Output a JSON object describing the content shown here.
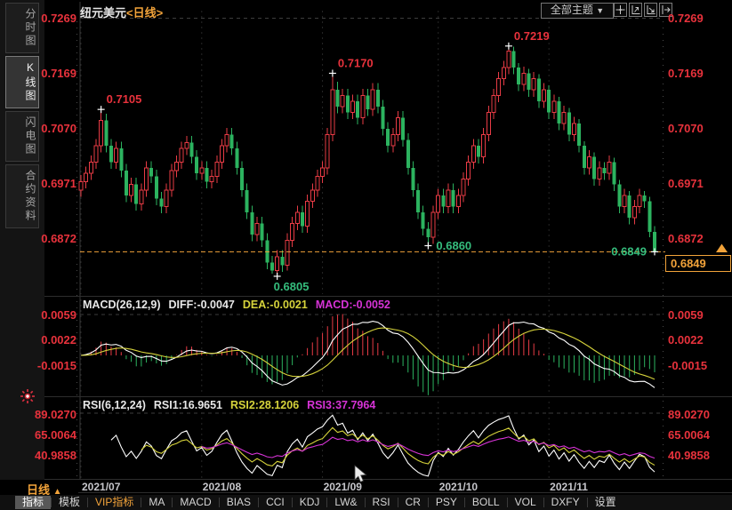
{
  "header": {
    "title": "纽元美元",
    "period_tag": "<日线>",
    "theme_label": "全部主题",
    "theme_arrow": "▼"
  },
  "sidebar": {
    "tabs": [
      "分时图",
      "K线图",
      "闪电图",
      "合约资料"
    ],
    "selected_index": 1
  },
  "toolbar_icons": [
    "pan-tool-icon",
    "y-axis-scale-icon",
    "x-axis-scale-icon",
    "pop-out-icon"
  ],
  "price_box": {
    "value": "0.6849"
  },
  "period_selector": {
    "label": "日线",
    "arrow": "▲"
  },
  "bottom_toolbar": {
    "items": [
      "指标",
      "模板",
      "VIP指标",
      "MA",
      "MACD",
      "BIAS",
      "CCI",
      "KDJ",
      "LW&",
      "RSI",
      "CR",
      "PSY",
      "BOLL",
      "VOL",
      "DXFY",
      "设置"
    ],
    "selected_index": 0,
    "vip_label": "VIP指标"
  },
  "indicators": {
    "macd": {
      "title": "MACD(26,12,9)",
      "diff": "DIFF:-0.0047",
      "dea": "DEA:-0.0021",
      "macd": "MACD:-0.0052",
      "axis_labels": [
        "0.0059",
        "0.0022",
        "-0.0015"
      ],
      "params": {
        "slow": 26,
        "fast": 12,
        "signal": 9
      }
    },
    "rsi": {
      "title": "RSI(6,12,24)",
      "r1": "RSI1:16.9651",
      "r2": "RSI2:28.1206",
      "r3": "RSI3:37.7964",
      "axis_labels": [
        "89.0270",
        "65.0064",
        "40.9858"
      ],
      "periods": [
        6,
        12,
        24
      ]
    }
  },
  "colors": {
    "up": "#e83b45",
    "down": "#2cb35f",
    "axis_label": "#e8323c",
    "orange": "#f2a33a",
    "dif_line": "#ffffff",
    "dea_line": "#d6d33b",
    "magenta": "#d633d6",
    "low_text": "#35bd7d",
    "grid": "#262626",
    "dash_grid": "#3d3d3d",
    "divider": "#2d2d2d",
    "border": "#383838"
  },
  "chart_data": {
    "type": "candlestick",
    "title": "纽元美元<日线>",
    "y_axis_labels": [
      "0.7269",
      "0.7169",
      "0.7070",
      "0.6971",
      "0.6872"
    ],
    "y_axis_values": [
      0.7269,
      0.7169,
      0.707,
      0.6971,
      0.6872
    ],
    "current_price": 0.6849,
    "months": [
      {
        "label": "2021/07",
        "index": 0
      },
      {
        "label": "2021/08",
        "index": 24
      },
      {
        "label": "2021/09",
        "index": 48
      },
      {
        "label": "2021/10",
        "index": 71
      },
      {
        "label": "2021/11",
        "index": 93
      }
    ],
    "markers": [
      {
        "index": 4,
        "price": 0.7105,
        "label": "0.7105",
        "type": "high",
        "labelPos": "above"
      },
      {
        "index": 50,
        "price": 0.717,
        "label": "0.7170",
        "type": "high",
        "labelPos": "above"
      },
      {
        "index": 85,
        "price": 0.7219,
        "label": "0.7219",
        "type": "high",
        "labelPos": "above"
      },
      {
        "index": 39,
        "price": 0.6805,
        "label": "0.6805",
        "type": "low",
        "labelPos": "below"
      },
      {
        "index": 69,
        "price": 0.686,
        "label": "0.6860",
        "type": "low",
        "labelPos": "right"
      },
      {
        "index": 114,
        "price": 0.6849,
        "label": "0.6849",
        "type": "low",
        "labelPos": "left"
      }
    ],
    "candles": [
      [
        0.696,
        0.6987,
        0.6948,
        0.6975
      ],
      [
        0.6975,
        0.7002,
        0.6963,
        0.699
      ],
      [
        0.699,
        0.7022,
        0.6978,
        0.701
      ],
      [
        0.701,
        0.7052,
        0.6998,
        0.704
      ],
      [
        0.704,
        0.7105,
        0.7028,
        0.7085
      ],
      [
        0.7085,
        0.7097,
        0.7028,
        0.704
      ],
      [
        0.704,
        0.7052,
        0.6998,
        0.701
      ],
      [
        0.701,
        0.7047,
        0.6998,
        0.7035
      ],
      [
        0.7035,
        0.7047,
        0.6983,
        0.6995
      ],
      [
        0.6995,
        0.7007,
        0.6938,
        0.695
      ],
      [
        0.695,
        0.6982,
        0.6938,
        0.697
      ],
      [
        0.697,
        0.6982,
        0.6923,
        0.6935
      ],
      [
        0.6935,
        0.6972,
        0.6923,
        0.696
      ],
      [
        0.696,
        0.7012,
        0.6948,
        0.7
      ],
      [
        0.7,
        0.7012,
        0.6973,
        0.6985
      ],
      [
        0.6985,
        0.6997,
        0.6933,
        0.6945
      ],
      [
        0.6945,
        0.6957,
        0.6918,
        0.693
      ],
      [
        0.693,
        0.6972,
        0.6918,
        0.696
      ],
      [
        0.696,
        0.7007,
        0.6948,
        0.6995
      ],
      [
        0.6995,
        0.7022,
        0.6983,
        0.701
      ],
      [
        0.701,
        0.7047,
        0.6998,
        0.7035
      ],
      [
        0.7035,
        0.7057,
        0.7023,
        0.7045
      ],
      [
        0.7045,
        0.7057,
        0.7008,
        0.702
      ],
      [
        0.702,
        0.7032,
        0.6978,
        0.699
      ],
      [
        0.699,
        0.7012,
        0.6978,
        0.7
      ],
      [
        0.7,
        0.7012,
        0.6963,
        0.6975
      ],
      [
        0.6975,
        0.6997,
        0.6963,
        0.6985
      ],
      [
        0.6985,
        0.7022,
        0.6973,
        0.701
      ],
      [
        0.701,
        0.7052,
        0.6998,
        0.704
      ],
      [
        0.704,
        0.7072,
        0.7028,
        0.706
      ],
      [
        0.706,
        0.7072,
        0.7023,
        0.7035
      ],
      [
        0.7035,
        0.7047,
        0.6988,
        0.7
      ],
      [
        0.7,
        0.7012,
        0.6948,
        0.696
      ],
      [
        0.696,
        0.6972,
        0.6908,
        0.692
      ],
      [
        0.692,
        0.6932,
        0.6868,
        0.688
      ],
      [
        0.688,
        0.6912,
        0.6868,
        0.69
      ],
      [
        0.69,
        0.6912,
        0.6858,
        0.687
      ],
      [
        0.687,
        0.6882,
        0.6818,
        0.683
      ],
      [
        0.683,
        0.6842,
        0.681,
        0.6815
      ],
      [
        0.6815,
        0.6852,
        0.6805,
        0.684
      ],
      [
        0.684,
        0.6852,
        0.6813,
        0.6825
      ],
      [
        0.6825,
        0.6882,
        0.6815,
        0.687
      ],
      [
        0.687,
        0.6912,
        0.6858,
        0.69
      ],
      [
        0.69,
        0.6932,
        0.6888,
        0.692
      ],
      [
        0.692,
        0.6932,
        0.6883,
        0.6895
      ],
      [
        0.6895,
        0.6952,
        0.6883,
        0.694
      ],
      [
        0.694,
        0.6972,
        0.6928,
        0.696
      ],
      [
        0.696,
        0.6997,
        0.6948,
        0.6985
      ],
      [
        0.6985,
        0.7012,
        0.6973,
        0.7
      ],
      [
        0.7,
        0.7072,
        0.6988,
        0.706
      ],
      [
        0.706,
        0.717,
        0.7048,
        0.714
      ],
      [
        0.714,
        0.7155,
        0.7098,
        0.711
      ],
      [
        0.711,
        0.7142,
        0.7098,
        0.713
      ],
      [
        0.713,
        0.7142,
        0.7088,
        0.71
      ],
      [
        0.71,
        0.7132,
        0.7088,
        0.712
      ],
      [
        0.712,
        0.7132,
        0.7078,
        0.709
      ],
      [
        0.709,
        0.7142,
        0.7078,
        0.713
      ],
      [
        0.713,
        0.7142,
        0.7093,
        0.7105
      ],
      [
        0.7105,
        0.7152,
        0.7093,
        0.714
      ],
      [
        0.714,
        0.7152,
        0.7098,
        0.711
      ],
      [
        0.711,
        0.7122,
        0.7058,
        0.707
      ],
      [
        0.707,
        0.7082,
        0.7028,
        0.704
      ],
      [
        0.704,
        0.7072,
        0.7028,
        0.706
      ],
      [
        0.706,
        0.7102,
        0.7048,
        0.709
      ],
      [
        0.709,
        0.7102,
        0.7038,
        0.705
      ],
      [
        0.705,
        0.7062,
        0.6988,
        0.7
      ],
      [
        0.7,
        0.7012,
        0.6948,
        0.696
      ],
      [
        0.696,
        0.6972,
        0.6908,
        0.692
      ],
      [
        0.692,
        0.6932,
        0.6878,
        0.689
      ],
      [
        0.689,
        0.6902,
        0.686,
        0.6875
      ],
      [
        0.6875,
        0.6932,
        0.6863,
        0.692
      ],
      [
        0.692,
        0.6962,
        0.6908,
        0.695
      ],
      [
        0.695,
        0.6962,
        0.6918,
        0.693
      ],
      [
        0.693,
        0.6972,
        0.6918,
        0.696
      ],
      [
        0.696,
        0.6972,
        0.6918,
        0.693
      ],
      [
        0.693,
        0.6962,
        0.6918,
        0.695
      ],
      [
        0.695,
        0.6992,
        0.6938,
        0.698
      ],
      [
        0.698,
        0.7022,
        0.6968,
        0.701
      ],
      [
        0.701,
        0.7052,
        0.6998,
        0.704
      ],
      [
        0.704,
        0.7052,
        0.7008,
        0.702
      ],
      [
        0.702,
        0.7072,
        0.7008,
        0.706
      ],
      [
        0.706,
        0.7112,
        0.7048,
        0.71
      ],
      [
        0.71,
        0.7142,
        0.7088,
        0.713
      ],
      [
        0.713,
        0.7172,
        0.7118,
        0.716
      ],
      [
        0.716,
        0.7192,
        0.7148,
        0.718
      ],
      [
        0.718,
        0.7219,
        0.7168,
        0.721
      ],
      [
        0.721,
        0.7218,
        0.7168,
        0.718
      ],
      [
        0.718,
        0.7188,
        0.7138,
        0.715
      ],
      [
        0.715,
        0.7182,
        0.7138,
        0.717
      ],
      [
        0.717,
        0.7178,
        0.7128,
        0.714
      ],
      [
        0.714,
        0.7172,
        0.7128,
        0.716
      ],
      [
        0.716,
        0.7168,
        0.7108,
        0.712
      ],
      [
        0.712,
        0.7152,
        0.7108,
        0.714
      ],
      [
        0.714,
        0.7148,
        0.7088,
        0.71
      ],
      [
        0.71,
        0.7132,
        0.7088,
        0.712
      ],
      [
        0.712,
        0.7128,
        0.7068,
        0.708
      ],
      [
        0.708,
        0.7112,
        0.7068,
        0.71
      ],
      [
        0.71,
        0.7108,
        0.7048,
        0.706
      ],
      [
        0.706,
        0.7092,
        0.7048,
        0.708
      ],
      [
        0.708,
        0.7088,
        0.7028,
        0.704
      ],
      [
        0.704,
        0.7048,
        0.6988,
        0.7
      ],
      [
        0.7,
        0.7032,
        0.6988,
        0.702
      ],
      [
        0.702,
        0.7028,
        0.6968,
        0.698
      ],
      [
        0.698,
        0.7012,
        0.6968,
        0.7
      ],
      [
        0.7,
        0.701,
        0.6978,
        0.699
      ],
      [
        0.699,
        0.7022,
        0.6978,
        0.701
      ],
      [
        0.701,
        0.7018,
        0.6958,
        0.697
      ],
      [
        0.697,
        0.6978,
        0.6918,
        0.693
      ],
      [
        0.693,
        0.6962,
        0.6918,
        0.695
      ],
      [
        0.695,
        0.6958,
        0.6898,
        0.691
      ],
      [
        0.691,
        0.6942,
        0.6898,
        0.693
      ],
      [
        0.693,
        0.6962,
        0.6918,
        0.695
      ],
      [
        0.695,
        0.6958,
        0.6928,
        0.694
      ],
      [
        0.694,
        0.6948,
        0.6875,
        0.6885
      ],
      [
        0.6885,
        0.6895,
        0.6849,
        0.6849
      ]
    ]
  }
}
